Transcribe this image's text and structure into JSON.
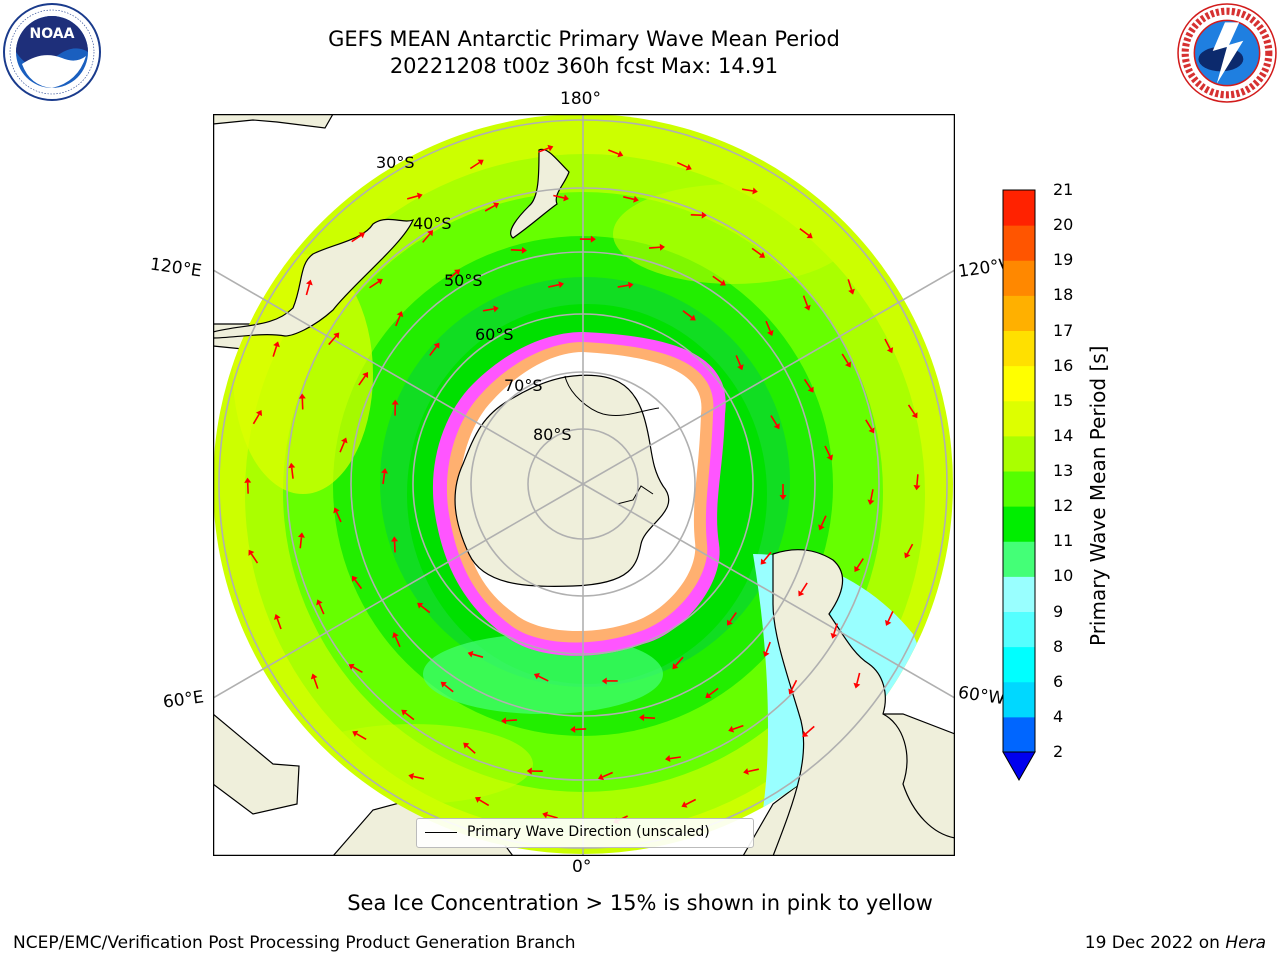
{
  "header": {
    "title_line1": "GEFS MEAN Antarctic Primary Wave Mean Period",
    "title_line2": "20221208 t00z 360h fcst   Max: 14.91"
  },
  "logos": {
    "left": {
      "name": "NOAA",
      "ring_text": "NATIONAL OCEANIC AND ATMOSPHERIC ADMINISTRATION · U.S. DEPARTMENT OF COMMERCE"
    },
    "right": {
      "name": "NATIONAL WEATHER SERVICE"
    }
  },
  "map": {
    "projection": "south-polar-stereographic",
    "longitude_labels": {
      "top": "180°",
      "bottom": "0°",
      "upper_left": "120°E",
      "upper_right": "120°W",
      "lower_left": "60°E",
      "lower_right": "60°W"
    },
    "latitude_labels": [
      "30°S",
      "40°S",
      "50°S",
      "60°S",
      "70°S",
      "80°S"
    ],
    "legend_text": "Primary Wave Direction (unscaled)",
    "arrow_color": "#ff0000",
    "land_color": "#efefdb"
  },
  "colorbar": {
    "label": "Primary Wave Mean Period [s]",
    "ticks": [
      "2",
      "4",
      "6",
      "8",
      "9",
      "10",
      "11",
      "12",
      "13",
      "14",
      "15",
      "16",
      "17",
      "18",
      "19",
      "20",
      "21"
    ],
    "colors": [
      "#0066ff",
      "#00d8ff",
      "#00ffff",
      "#55ffff",
      "#99ffff",
      "#44ff77",
      "#00ee00",
      "#55ff00",
      "#aaff00",
      "#ddff00",
      "#ffff00",
      "#ffe000",
      "#ffb000",
      "#ff8800",
      "#ff5500",
      "#ff2200"
    ],
    "extend_color": "#0000ee"
  },
  "caption": "Sea Ice Concentration > 15% is shown in pink to yellow",
  "footer": {
    "left": "NCEP/EMC/Verification Post Processing Product Generation Branch",
    "right_date": "19 Dec 2022 on ",
    "right_host": "Hera"
  }
}
